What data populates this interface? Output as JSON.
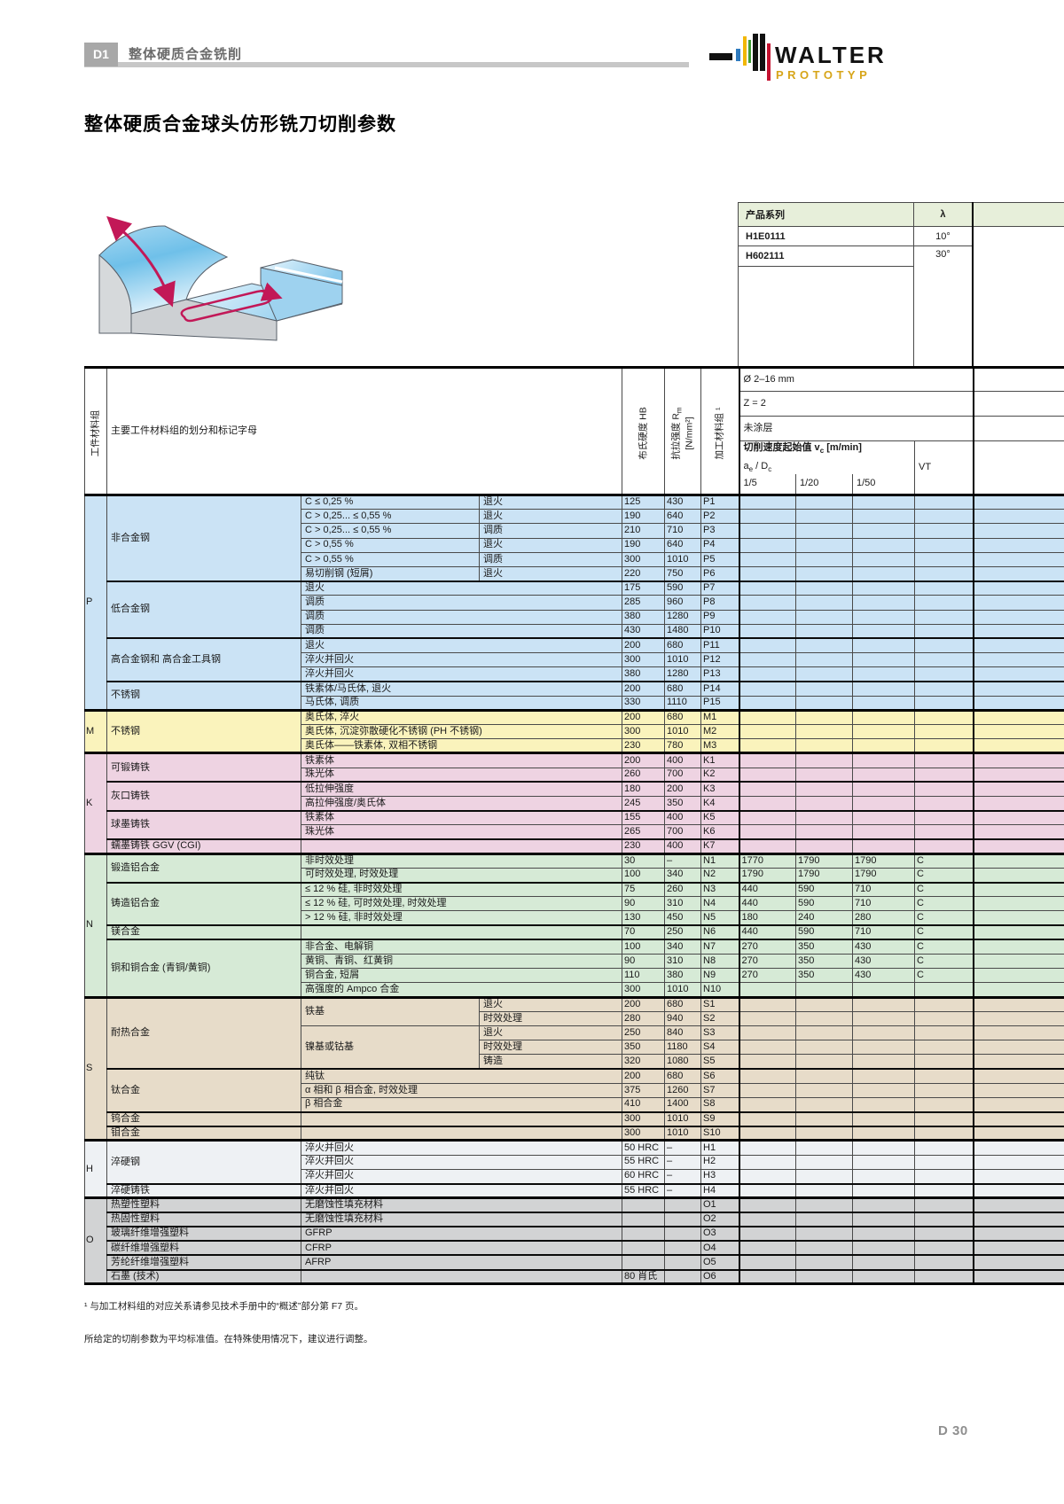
{
  "page": {
    "badge": "D1",
    "chapter": "整体硬质合金铣削",
    "title": "整体硬质合金球头仿形铣刀切削参数",
    "footnote1": "¹ 与加工材料组的对应关系请参见技术手册中的“概述”部分第 F7 页。",
    "footnote2": "所给定的切削参数为平均标准值。在特殊使用情况下，建议进行调整。",
    "page_number": "D 30"
  },
  "logo": {
    "brand": "WALTER",
    "sub": "PROTOTYP",
    "gold": "#d7a519"
  },
  "product_table": {
    "header": [
      "产品系列",
      "λ"
    ],
    "rows": [
      [
        "H1E0111",
        "10°"
      ],
      [
        "H602111",
        "30°"
      ]
    ]
  },
  "main_table": {
    "headers": {
      "workpiece_group": "工件材料组",
      "subdivision": "主要工件材料组的划分和标记字母",
      "hb": "布氏硬度 HB",
      "rm_a": "抗拉强度 R",
      "rm_sub": "m",
      "rm_b": "[N/mm²]",
      "code": "加工材料组 ¹",
      "diameter": "Ø 2–16 mm",
      "teeth": "Z = 2",
      "coating": "未涂层",
      "vc_a": "切削速度起始值 v",
      "vc_sub": "c",
      "vc_b": " [m/min]",
      "ae_a": "a",
      "ae_sub": "e",
      "ae_b": " / D",
      "ae_sub2": "c",
      "ratios": [
        "1/5",
        "1/20",
        "1/50"
      ],
      "vt": "VT"
    },
    "sections": [
      {
        "letter": "P",
        "bg": "#cbe3f5",
        "groups": [
          {
            "name": "非合金钢",
            "rows": [
              {
                "sub": "C ≤ 0,25 %",
                "treat": "退火",
                "hb": "125",
                "rm": "430",
                "code": "P1"
              },
              {
                "sub": "C > 0,25... ≤ 0,55 %",
                "treat": "退火",
                "hb": "190",
                "rm": "640",
                "code": "P2"
              },
              {
                "sub": "C > 0,25... ≤ 0,55 %",
                "treat": "调质",
                "hb": "210",
                "rm": "710",
                "code": "P3"
              },
              {
                "sub": "C > 0,55 %",
                "treat": "退火",
                "hb": "190",
                "rm": "640",
                "code": "P4"
              },
              {
                "sub": "C > 0,55 %",
                "treat": "调质",
                "hb": "300",
                "rm": "1010",
                "code": "P5"
              },
              {
                "sub": "易切削钢 (短屑)",
                "treat": "退火",
                "hb": "220",
                "rm": "750",
                "code": "P6"
              }
            ]
          },
          {
            "name": "低合金钢",
            "rows": [
              {
                "sub": "退火",
                "cs": 2,
                "hb": "175",
                "rm": "590",
                "code": "P7"
              },
              {
                "sub": "调质",
                "cs": 2,
                "hb": "285",
                "rm": "960",
                "code": "P8"
              },
              {
                "sub": "调质",
                "cs": 2,
                "hb": "380",
                "rm": "1280",
                "code": "P9"
              },
              {
                "sub": "调质",
                "cs": 2,
                "hb": "430",
                "rm": "1480",
                "code": "P10"
              }
            ]
          },
          {
            "name": "高合金钢和\n高合金工具钢",
            "rows": [
              {
                "sub": "退火",
                "cs": 2,
                "hb": "200",
                "rm": "680",
                "code": "P11"
              },
              {
                "sub": "淬火并回火",
                "cs": 2,
                "hb": "300",
                "rm": "1010",
                "code": "P12"
              },
              {
                "sub": "淬火并回火",
                "cs": 2,
                "hb": "380",
                "rm": "1280",
                "code": "P13"
              }
            ]
          },
          {
            "name": "不锈钢",
            "rows": [
              {
                "sub": "铁素体/马氏体, 退火",
                "cs": 2,
                "hb": "200",
                "rm": "680",
                "code": "P14"
              },
              {
                "sub": "马氏体, 调质",
                "cs": 2,
                "hb": "330",
                "rm": "1110",
                "code": "P15"
              }
            ]
          }
        ]
      },
      {
        "letter": "M",
        "bg": "#faf3bc",
        "groups": [
          {
            "name": "不锈钢",
            "rows": [
              {
                "sub": "奥氏体, 淬火",
                "cs": 2,
                "hb": "200",
                "rm": "680",
                "code": "M1"
              },
              {
                "sub": "奥氏体, 沉淀弥散硬化不锈钢 (PH 不锈钢)",
                "cs": 2,
                "hb": "300",
                "rm": "1010",
                "code": "M2"
              },
              {
                "sub": "奥氏体——铁素体, 双相不锈钢",
                "cs": 2,
                "hb": "230",
                "rm": "780",
                "code": "M3"
              }
            ]
          }
        ]
      },
      {
        "letter": "K",
        "bg": "#eed3e2",
        "groups": [
          {
            "name": "可锻铸铁",
            "rows": [
              {
                "sub": "铁素体",
                "cs": 2,
                "hb": "200",
                "rm": "400",
                "code": "K1"
              },
              {
                "sub": "珠光体",
                "cs": 2,
                "hb": "260",
                "rm": "700",
                "code": "K2"
              }
            ]
          },
          {
            "name": "灰口铸铁",
            "rows": [
              {
                "sub": "低拉伸强度",
                "cs": 2,
                "hb": "180",
                "rm": "200",
                "code": "K3"
              },
              {
                "sub": "高拉伸强度/奥氏体",
                "cs": 2,
                "hb": "245",
                "rm": "350",
                "code": "K4"
              }
            ]
          },
          {
            "name": "球墨铸铁",
            "rows": [
              {
                "sub": "铁素体",
                "cs": 2,
                "hb": "155",
                "rm": "400",
                "code": "K5"
              },
              {
                "sub": "珠光体",
                "cs": 2,
                "hb": "265",
                "rm": "700",
                "code": "K6"
              }
            ]
          },
          {
            "name": "蠕墨铸铁 GGV (CGI)",
            "rows": [
              {
                "sub": "",
                "cs": 2,
                "hb": "230",
                "rm": "400",
                "code": "K7"
              }
            ]
          }
        ]
      },
      {
        "letter": "N",
        "bg": "#d6ead6",
        "groups": [
          {
            "name": "锻造铝合金",
            "rows": [
              {
                "sub": "非时效处理",
                "cs": 2,
                "hb": "30",
                "rm": "–",
                "code": "N1",
                "vc": [
                  "1770",
                  "1790",
                  "1790",
                  "C"
                ]
              },
              {
                "sub": "可时效处理, 时效处理",
                "cs": 2,
                "hb": "100",
                "rm": "340",
                "code": "N2",
                "vc": [
                  "1790",
                  "1790",
                  "1790",
                  "C"
                ]
              }
            ]
          },
          {
            "name": "铸造铝合金",
            "rows": [
              {
                "sub": "≤ 12 % 硅, 非时效处理",
                "cs": 2,
                "hb": "75",
                "rm": "260",
                "code": "N3",
                "vc": [
                  "440",
                  "590",
                  "710",
                  "C"
                ]
              },
              {
                "sub": "≤ 12 % 硅, 可时效处理, 时效处理",
                "cs": 2,
                "hb": "90",
                "rm": "310",
                "code": "N4",
                "vc": [
                  "440",
                  "590",
                  "710",
                  "C"
                ]
              },
              {
                "sub": "> 12 % 硅, 非时效处理",
                "cs": 2,
                "hb": "130",
                "rm": "450",
                "code": "N5",
                "vc": [
                  "180",
                  "240",
                  "280",
                  "C"
                ]
              }
            ]
          },
          {
            "name": "镁合金",
            "rows": [
              {
                "sub": "",
                "cs": 2,
                "hb": "70",
                "rm": "250",
                "code": "N6",
                "vc": [
                  "440",
                  "590",
                  "710",
                  "C"
                ]
              }
            ]
          },
          {
            "name": "铜和铜合金 (青铜/黄铜)",
            "rows": [
              {
                "sub": "非合金、电解铜",
                "cs": 2,
                "hb": "100",
                "rm": "340",
                "code": "N7",
                "vc": [
                  "270",
                  "350",
                  "430",
                  "C"
                ]
              },
              {
                "sub": "黄铜、青铜、红黄铜",
                "cs": 2,
                "hb": "90",
                "rm": "310",
                "code": "N8",
                "vc": [
                  "270",
                  "350",
                  "430",
                  "C"
                ]
              },
              {
                "sub": "铜合金, 短屑",
                "cs": 2,
                "hb": "110",
                "rm": "380",
                "code": "N9",
                "vc": [
                  "270",
                  "350",
                  "430",
                  "C"
                ]
              },
              {
                "sub": "高强度的 Ampco 合金",
                "cs": 2,
                "hb": "300",
                "rm": "1010",
                "code": "N10"
              }
            ]
          }
        ]
      },
      {
        "letter": "S",
        "bg": "#e7dcc9",
        "groups": [
          {
            "name": "耐热合金",
            "rows": [
              {
                "sub": "铁基",
                "rs": 2,
                "treat": "退火",
                "hb": "200",
                "rm": "680",
                "code": "S1"
              },
              {
                "treat": "时效处理",
                "hb": "280",
                "rm": "940",
                "code": "S2"
              },
              {
                "sub": "镍基或钴基",
                "rs": 3,
                "treat": "退火",
                "hb": "250",
                "rm": "840",
                "code": "S3"
              },
              {
                "treat": "时效处理",
                "hb": "350",
                "rm": "1180",
                "code": "S4"
              },
              {
                "treat": "铸造",
                "hb": "320",
                "rm": "1080",
                "code": "S5"
              }
            ]
          },
          {
            "name": "钛合金",
            "rows": [
              {
                "sub": "纯钛",
                "cs": 2,
                "hb": "200",
                "rm": "680",
                "code": "S6"
              },
              {
                "sub": "α 相和 β 相合金, 时效处理",
                "cs": 2,
                "hb": "375",
                "rm": "1260",
                "code": "S7"
              },
              {
                "sub": "β 相合金",
                "cs": 2,
                "hb": "410",
                "rm": "1400",
                "code": "S8"
              }
            ]
          },
          {
            "name": "钨合金",
            "rows": [
              {
                "sub": "",
                "cs": 2,
                "hb": "300",
                "rm": "1010",
                "code": "S9"
              }
            ]
          },
          {
            "name": "钼合金",
            "rows": [
              {
                "sub": "",
                "cs": 2,
                "hb": "300",
                "rm": "1010",
                "code": "S10"
              }
            ]
          }
        ]
      },
      {
        "letter": "H",
        "bg": "#eef1f4",
        "groups": [
          {
            "name": "淬硬钢",
            "rows": [
              {
                "sub": "淬火并回火",
                "cs": 2,
                "hb": "50 HRC",
                "rm": "–",
                "code": "H1"
              },
              {
                "sub": "淬火并回火",
                "cs": 2,
                "hb": "55 HRC",
                "rm": "–",
                "code": "H2"
              },
              {
                "sub": "淬火并回火",
                "cs": 2,
                "hb": "60 HRC",
                "rm": "–",
                "code": "H3"
              }
            ]
          },
          {
            "name": "淬硬铸铁",
            "rows": [
              {
                "sub": "淬火并回火",
                "cs": 2,
                "hb": "55 HRC",
                "rm": "–",
                "code": "H4"
              }
            ]
          }
        ]
      },
      {
        "letter": "O",
        "bg": "#d2d3d4",
        "groups": [
          {
            "name": "热塑性塑料",
            "rows": [
              {
                "sub": "无磨蚀性填充材料",
                "cs": 2,
                "hb": "",
                "rm": "",
                "code": "O1"
              }
            ]
          },
          {
            "name": "热固性塑料",
            "rows": [
              {
                "sub": "无磨蚀性填充材料",
                "cs": 2,
                "hb": "",
                "rm": "",
                "code": "O2"
              }
            ]
          },
          {
            "name": "玻璃纤维增强塑料",
            "rows": [
              {
                "sub": "GFRP",
                "cs": 2,
                "hb": "",
                "rm": "",
                "code": "O3"
              }
            ]
          },
          {
            "name": "碳纤维增强塑料",
            "rows": [
              {
                "sub": "CFRP",
                "cs": 2,
                "hb": "",
                "rm": "",
                "code": "O4"
              }
            ]
          },
          {
            "name": "芳纶纤维增强塑料",
            "rows": [
              {
                "sub": "AFRP",
                "cs": 2,
                "hb": "",
                "rm": "",
                "code": "O5"
              }
            ]
          },
          {
            "name": "石墨 (技术)",
            "rows": [
              {
                "sub": "",
                "cs": 2,
                "hb": "80 肖氏",
                "rm": "",
                "code": "O6"
              }
            ]
          }
        ]
      }
    ]
  }
}
